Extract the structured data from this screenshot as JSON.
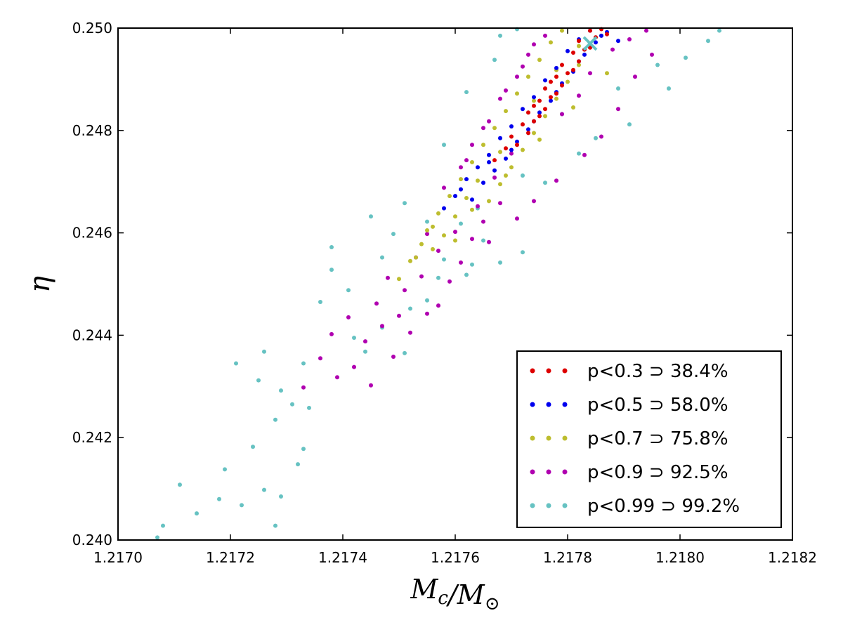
{
  "chart_data": {
    "type": "scatter",
    "title": "",
    "xlabel": "M_c/M_⊙",
    "ylabel": "η",
    "xlim": [
      1.217,
      1.2182
    ],
    "ylim": [
      0.24,
      0.25
    ],
    "x_ticks": [
      "1.2170",
      "1.2172",
      "1.2174",
      "1.2176",
      "1.2178",
      "1.2180",
      "1.2182"
    ],
    "y_ticks": [
      "0.240",
      "0.242",
      "0.244",
      "0.246",
      "0.248",
      "0.250"
    ],
    "grid": false,
    "legend_position": "lower-right",
    "series": [
      {
        "name": "p<0.99 ⊃ 99.2%",
        "color": "#66c2c2",
        "points": [
          [
            1.21707,
            0.24005
          ],
          [
            1.21708,
            0.24028
          ],
          [
            1.21711,
            0.24108
          ],
          [
            1.21714,
            0.24052
          ],
          [
            1.21718,
            0.2408
          ],
          [
            1.21719,
            0.24138
          ],
          [
            1.21722,
            0.24068
          ],
          [
            1.21726,
            0.24098
          ],
          [
            1.21728,
            0.24028
          ],
          [
            1.21729,
            0.24085
          ],
          [
            1.21724,
            0.24182
          ],
          [
            1.21728,
            0.24235
          ],
          [
            1.21725,
            0.24312
          ],
          [
            1.21721,
            0.24345
          ],
          [
            1.21726,
            0.24368
          ],
          [
            1.21729,
            0.24292
          ],
          [
            1.21732,
            0.24148
          ],
          [
            1.21733,
            0.24178
          ],
          [
            1.21731,
            0.24265
          ],
          [
            1.21734,
            0.24258
          ],
          [
            1.21736,
            0.24465
          ],
          [
            1.21738,
            0.24528
          ],
          [
            1.21741,
            0.24488
          ],
          [
            1.21742,
            0.24395
          ],
          [
            1.21744,
            0.24368
          ],
          [
            1.21747,
            0.24415
          ],
          [
            1.21752,
            0.24452
          ],
          [
            1.21755,
            0.24468
          ],
          [
            1.21757,
            0.24512
          ],
          [
            1.21751,
            0.24365
          ],
          [
            1.21749,
            0.24598
          ],
          [
            1.21755,
            0.24622
          ],
          [
            1.21758,
            0.24548
          ],
          [
            1.21763,
            0.24538
          ],
          [
            1.21761,
            0.24618
          ],
          [
            1.21768,
            0.24542
          ],
          [
            1.21762,
            0.24518
          ],
          [
            1.21765,
            0.24585
          ],
          [
            1.21772,
            0.24562
          ],
          [
            1.21776,
            0.24698
          ],
          [
            1.21782,
            0.24755
          ],
          [
            1.21785,
            0.24785
          ],
          [
            1.21791,
            0.24812
          ],
          [
            1.21789,
            0.24882
          ],
          [
            1.21796,
            0.24928
          ],
          [
            1.21798,
            0.24882
          ],
          [
            1.21801,
            0.24942
          ],
          [
            1.21805,
            0.24975
          ],
          [
            1.21807,
            0.24995
          ],
          [
            1.21745,
            0.24632
          ],
          [
            1.21738,
            0.24572
          ],
          [
            1.21764,
            0.24648
          ],
          [
            1.21772,
            0.24712
          ],
          [
            1.21779,
            0.24832
          ],
          [
            1.21751,
            0.24658
          ],
          [
            1.21733,
            0.24345
          ],
          [
            1.21747,
            0.24552
          ],
          [
            1.21758,
            0.24772
          ],
          [
            1.21762,
            0.24875
          ],
          [
            1.21767,
            0.24938
          ],
          [
            1.21771,
            0.24998
          ],
          [
            1.21768,
            0.24985
          ]
        ]
      },
      {
        "name": "p<0.9 ⊃ 92.5%",
        "color": "#b000b0",
        "points": [
          [
            1.21733,
            0.24298
          ],
          [
            1.21736,
            0.24355
          ],
          [
            1.21738,
            0.24402
          ],
          [
            1.21741,
            0.24435
          ],
          [
            1.21744,
            0.24388
          ],
          [
            1.21746,
            0.24462
          ],
          [
            1.21748,
            0.24512
          ],
          [
            1.21751,
            0.24488
          ],
          [
            1.21753,
            0.24552
          ],
          [
            1.21755,
            0.24598
          ],
          [
            1.21745,
            0.24302
          ],
          [
            1.21749,
            0.24358
          ],
          [
            1.21752,
            0.24405
          ],
          [
            1.21755,
            0.24442
          ],
          [
            1.21757,
            0.24458
          ],
          [
            1.21759,
            0.24505
          ],
          [
            1.21761,
            0.24542
          ],
          [
            1.21763,
            0.24588
          ],
          [
            1.21765,
            0.24622
          ],
          [
            1.21768,
            0.24658
          ],
          [
            1.21758,
            0.24688
          ],
          [
            1.21761,
            0.24728
          ],
          [
            1.21763,
            0.24772
          ],
          [
            1.21766,
            0.24818
          ],
          [
            1.21768,
            0.24862
          ],
          [
            1.21771,
            0.24905
          ],
          [
            1.21773,
            0.24948
          ],
          [
            1.21776,
            0.24985
          ],
          [
            1.21779,
            0.24832
          ],
          [
            1.21782,
            0.24868
          ],
          [
            1.21784,
            0.24912
          ],
          [
            1.21788,
            0.24958
          ],
          [
            1.21791,
            0.24978
          ],
          [
            1.21794,
            0.24995
          ],
          [
            1.21786,
            0.24788
          ],
          [
            1.21783,
            0.24752
          ],
          [
            1.21778,
            0.24702
          ],
          [
            1.21774,
            0.24662
          ],
          [
            1.21771,
            0.24628
          ],
          [
            1.21766,
            0.24582
          ],
          [
            1.21739,
            0.24318
          ],
          [
            1.21742,
            0.24338
          ],
          [
            1.21747,
            0.24418
          ],
          [
            1.2175,
            0.24438
          ],
          [
            1.21754,
            0.24515
          ],
          [
            1.21757,
            0.24565
          ],
          [
            1.2176,
            0.24602
          ],
          [
            1.21764,
            0.24652
          ],
          [
            1.21767,
            0.24708
          ],
          [
            1.2177,
            0.24755
          ],
          [
            1.21789,
            0.24842
          ],
          [
            1.21792,
            0.24905
          ],
          [
            1.21795,
            0.24948
          ],
          [
            1.21762,
            0.24742
          ],
          [
            1.21765,
            0.24805
          ],
          [
            1.21769,
            0.24878
          ],
          [
            1.21772,
            0.24925
          ],
          [
            1.21774,
            0.24968
          ]
        ]
      },
      {
        "name": "p<0.7 ⊃ 75.8%",
        "color": "#bdbd2e",
        "points": [
          [
            1.2175,
            0.2451
          ],
          [
            1.21752,
            0.24545
          ],
          [
            1.21754,
            0.24578
          ],
          [
            1.21756,
            0.24612
          ],
          [
            1.21758,
            0.24595
          ],
          [
            1.2176,
            0.24632
          ],
          [
            1.21762,
            0.24668
          ],
          [
            1.21755,
            0.24605
          ],
          [
            1.21757,
            0.24638
          ],
          [
            1.21759,
            0.24672
          ],
          [
            1.21761,
            0.24705
          ],
          [
            1.21763,
            0.24738
          ],
          [
            1.21765,
            0.24772
          ],
          [
            1.21767,
            0.24805
          ],
          [
            1.21769,
            0.24838
          ],
          [
            1.21771,
            0.24872
          ],
          [
            1.21773,
            0.24905
          ],
          [
            1.21775,
            0.24938
          ],
          [
            1.21777,
            0.24972
          ],
          [
            1.21779,
            0.24995
          ],
          [
            1.21766,
            0.24662
          ],
          [
            1.21768,
            0.24695
          ],
          [
            1.2177,
            0.24728
          ],
          [
            1.21772,
            0.24762
          ],
          [
            1.21774,
            0.24795
          ],
          [
            1.21776,
            0.24828
          ],
          [
            1.21778,
            0.24862
          ],
          [
            1.2178,
            0.24895
          ],
          [
            1.21782,
            0.24928
          ],
          [
            1.21784,
            0.24962
          ],
          [
            1.21786,
            0.24985
          ],
          [
            1.21753,
            0.24552
          ],
          [
            1.21756,
            0.24568
          ],
          [
            1.21763,
            0.24645
          ],
          [
            1.21769,
            0.24712
          ],
          [
            1.21775,
            0.24782
          ],
          [
            1.21781,
            0.24845
          ],
          [
            1.21787,
            0.24912
          ],
          [
            1.2176,
            0.24585
          ],
          [
            1.21764,
            0.24702
          ],
          [
            1.21768,
            0.24758
          ],
          [
            1.21774,
            0.24858
          ],
          [
            1.21778,
            0.24918
          ],
          [
            1.21782,
            0.24965
          ]
        ]
      },
      {
        "name": "p<0.5 ⊃ 58.0%",
        "color": "#0000ee",
        "points": [
          [
            1.21758,
            0.24648
          ],
          [
            1.2176,
            0.24672
          ],
          [
            1.21762,
            0.24705
          ],
          [
            1.21764,
            0.24728
          ],
          [
            1.21766,
            0.24752
          ],
          [
            1.21768,
            0.24785
          ],
          [
            1.2177,
            0.24808
          ],
          [
            1.21772,
            0.24842
          ],
          [
            1.21774,
            0.24865
          ],
          [
            1.21776,
            0.24898
          ],
          [
            1.21778,
            0.24922
          ],
          [
            1.2178,
            0.24955
          ],
          [
            1.21782,
            0.24978
          ],
          [
            1.21784,
            0.24995
          ],
          [
            1.21765,
            0.24698
          ],
          [
            1.21767,
            0.24722
          ],
          [
            1.21769,
            0.24745
          ],
          [
            1.21771,
            0.24778
          ],
          [
            1.21773,
            0.24802
          ],
          [
            1.21775,
            0.24835
          ],
          [
            1.21777,
            0.24858
          ],
          [
            1.21779,
            0.24892
          ],
          [
            1.21781,
            0.24915
          ],
          [
            1.21783,
            0.24948
          ],
          [
            1.21785,
            0.24972
          ],
          [
            1.21787,
            0.24992
          ],
          [
            1.21761,
            0.24685
          ],
          [
            1.21763,
            0.24665
          ],
          [
            1.21766,
            0.24738
          ],
          [
            1.2177,
            0.24762
          ],
          [
            1.21774,
            0.24818
          ],
          [
            1.21778,
            0.24875
          ],
          [
            1.21782,
            0.24935
          ],
          [
            1.21786,
            0.24985
          ],
          [
            1.21789,
            0.24975
          ]
        ]
      },
      {
        "name": "p<0.3 ⊃ 38.4%",
        "color": "#dd0000",
        "points": [
          [
            1.21767,
            0.24742
          ],
          [
            1.21769,
            0.24765
          ],
          [
            1.2177,
            0.24788
          ],
          [
            1.21772,
            0.24812
          ],
          [
            1.21773,
            0.24835
          ],
          [
            1.21775,
            0.24858
          ],
          [
            1.21776,
            0.24882
          ],
          [
            1.21778,
            0.24905
          ],
          [
            1.21779,
            0.24928
          ],
          [
            1.21781,
            0.24952
          ],
          [
            1.21782,
            0.24975
          ],
          [
            1.21784,
            0.24995
          ],
          [
            1.21771,
            0.24772
          ],
          [
            1.21773,
            0.24795
          ],
          [
            1.21774,
            0.24818
          ],
          [
            1.21776,
            0.24842
          ],
          [
            1.21777,
            0.24865
          ],
          [
            1.21779,
            0.24888
          ],
          [
            1.2178,
            0.24912
          ],
          [
            1.21782,
            0.24935
          ],
          [
            1.21783,
            0.24958
          ],
          [
            1.21785,
            0.24982
          ],
          [
            1.21786,
            0.24998
          ],
          [
            1.21775,
            0.24828
          ],
          [
            1.21778,
            0.24872
          ],
          [
            1.21781,
            0.24918
          ],
          [
            1.21784,
            0.24962
          ],
          [
            1.21787,
            0.24988
          ],
          [
            1.21774,
            0.24848
          ],
          [
            1.21777,
            0.24895
          ]
        ]
      }
    ],
    "marker": {
      "x": 1.21784,
      "y": 0.2497,
      "color": "#66c2c2",
      "symbol": "x"
    }
  }
}
